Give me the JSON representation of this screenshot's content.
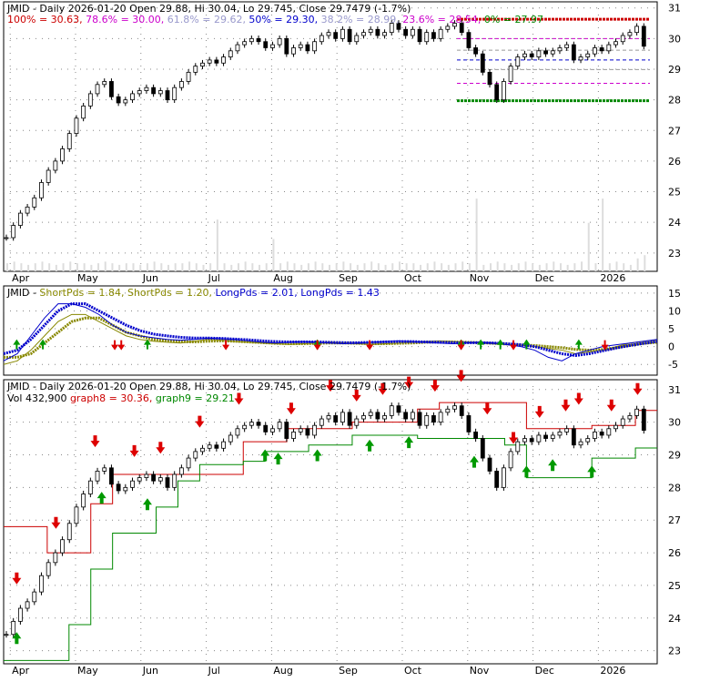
{
  "chart_data": [
    {
      "type": "line",
      "panel": "price",
      "title_parts": [
        {
          "text": "JMID - Daily 2026-01-20 Open 29.88, Hi 30.04, Lo 29.745, Close 29.7479 (-1.7%)",
          "color": "#000000"
        }
      ],
      "fib_parts": [
        {
          "text": "100% = 30.63,",
          "color": "#cc0000"
        },
        {
          "text": "78.6% = 30.00,",
          "color": "#cc00cc"
        },
        {
          "text": "61.8% = 29.62,",
          "color": "#9999cc"
        },
        {
          "text": "50% = 29.30,",
          "color": "#0000cc"
        },
        {
          "text": "38.2% = 28.99,",
          "color": "#9999cc"
        },
        {
          "text": "23.6% = 28.54,",
          "color": "#cc00cc"
        },
        {
          "text": "0% = 27.97",
          "color": "#008800"
        }
      ],
      "x_ticks": [
        "Apr",
        "May",
        "Jun",
        "Jul",
        "Aug",
        "Sep",
        "Oct",
        "Nov",
        "Dec",
        "2026"
      ],
      "y_ticks": [
        23,
        24,
        25,
        26,
        27,
        28,
        29,
        30,
        31
      ],
      "ylim": [
        22.4,
        31.2
      ],
      "fib_levels": [
        {
          "label": "100%",
          "value": 30.63,
          "color": "#cc0000"
        },
        {
          "label": "78.6%",
          "value": 30.0,
          "color": "#cc00cc"
        },
        {
          "label": "61.8%",
          "value": 29.62,
          "color": "#999999"
        },
        {
          "label": "50%",
          "value": 29.3,
          "color": "#0000cc"
        },
        {
          "label": "38.2%",
          "value": 28.99,
          "color": "#999999"
        },
        {
          "label": "23.6%",
          "value": 28.54,
          "color": "#cc00cc"
        },
        {
          "label": "0%",
          "value": 27.97,
          "color": "#008800"
        }
      ],
      "close": [
        23.5,
        23.9,
        24.3,
        24.5,
        24.8,
        25.3,
        25.7,
        26.0,
        26.4,
        26.9,
        27.4,
        27.8,
        28.2,
        28.5,
        28.6,
        28.1,
        27.9,
        28.0,
        28.2,
        28.3,
        28.4,
        28.2,
        28.3,
        28.0,
        28.4,
        28.6,
        28.9,
        29.1,
        29.2,
        29.3,
        29.2,
        29.4,
        29.6,
        29.8,
        29.9,
        30.0,
        29.9,
        29.7,
        29.8,
        30.0,
        29.5,
        29.7,
        29.8,
        29.6,
        29.9,
        30.1,
        30.2,
        30.0,
        30.3,
        29.9,
        30.1,
        30.2,
        30.3,
        30.1,
        30.2,
        30.5,
        30.3,
        30.1,
        30.3,
        29.9,
        30.2,
        30.0,
        30.3,
        30.4,
        30.5,
        30.2,
        29.7,
        29.5,
        28.9,
        28.5,
        28.0,
        28.6,
        29.1,
        29.4,
        29.5,
        29.4,
        29.6,
        29.5,
        29.6,
        29.7,
        29.8,
        29.3,
        29.4,
        29.5,
        29.7,
        29.6,
        29.8,
        29.9,
        30.1,
        30.2,
        30.4,
        29.75
      ],
      "volume_frac": [
        0.05,
        0.06,
        0.05,
        0.04,
        0.05,
        0.06,
        0.05,
        0.04,
        0.05,
        0.06,
        0.05,
        0.05,
        0.04,
        0.05,
        0.06,
        0.05,
        0.04,
        0.05,
        0.05,
        0.04,
        0.05,
        0.06,
        0.05,
        0.04,
        0.05,
        0.05,
        0.06,
        0.05,
        0.04,
        0.05,
        0.32,
        0.05,
        0.04,
        0.05,
        0.06,
        0.05,
        0.04,
        0.05,
        0.2,
        0.05,
        0.06,
        0.05,
        0.04,
        0.05,
        0.06,
        0.05,
        0.04,
        0.05,
        0.06,
        0.05,
        0.04,
        0.05,
        0.06,
        0.05,
        0.04,
        0.05,
        0.06,
        0.05,
        0.05,
        0.04,
        0.05,
        0.06,
        0.05,
        0.04,
        0.05,
        0.06,
        0.05,
        0.45,
        0.04,
        0.05,
        0.06,
        0.05,
        0.04,
        0.05,
        0.06,
        0.05,
        0.04,
        0.05,
        0.06,
        0.05,
        0.04,
        0.05,
        0.06,
        0.3,
        0.05,
        0.45,
        0.05,
        0.06,
        0.05,
        0.04,
        0.08,
        0.1
      ]
    },
    {
      "type": "line",
      "panel": "indicator",
      "title_parts": [
        {
          "text": "JMID -",
          "color": "#000000"
        },
        {
          "text": "ShortPds = 1.84,",
          "color": "#888800"
        },
        {
          "text": "ShortPds = 1.20,",
          "color": "#888800"
        },
        {
          "text": "LongPds = 2.01,",
          "color": "#0000cc"
        },
        {
          "text": "LongPds = 1.43",
          "color": "#0000cc"
        }
      ],
      "y_ticks": [
        -5,
        0,
        5,
        10,
        15
      ],
      "ylim": [
        -8,
        17
      ],
      "series": [
        {
          "name": "ShortPds",
          "color": "#888800",
          "values": [
            -5,
            -4,
            -1,
            3,
            7,
            9,
            9,
            7,
            5,
            3,
            2,
            1.5,
            1.2,
            1,
            1.5,
            2,
            1.8,
            1.4,
            1.2,
            1,
            0.8,
            0.6,
            0.8,
            1,
            1.2,
            1,
            0.8,
            0.6,
            0.8,
            1,
            1.2,
            1.4,
            1.6,
            1.4,
            1.2,
            1,
            0.8,
            0.6,
            0.4,
            0,
            -0.5,
            -1,
            -2,
            -1.5,
            -1,
            0,
            1,
            1.5,
            1.84
          ]
        },
        {
          "name": "ShortPds",
          "color": "#888800",
          "values": [
            -3,
            -3,
            -2,
            1,
            4,
            7,
            8,
            8,
            6,
            4,
            3,
            2,
            1.6,
            1.4,
            1.3,
            1.5,
            1.6,
            1.5,
            1.3,
            1.1,
            0.9,
            0.8,
            0.8,
            0.9,
            1.0,
            1.0,
            0.9,
            0.8,
            0.8,
            0.9,
            1.0,
            1.2,
            1.3,
            1.3,
            1.2,
            1.1,
            0.9,
            0.7,
            0.5,
            0.3,
            0,
            -0.3,
            -0.8,
            -1,
            -0.8,
            -0.3,
            0.4,
            0.9,
            1.2
          ]
        },
        {
          "name": "LongPds",
          "color": "#0000cc",
          "values": [
            -4,
            -2,
            3,
            8,
            12,
            12,
            11,
            9,
            6,
            4,
            3,
            2.5,
            2,
            1.8,
            2,
            2.4,
            2.2,
            2,
            1.6,
            1.2,
            1,
            1.2,
            1.4,
            1.2,
            1,
            0.8,
            1,
            1.2,
            1.4,
            1.6,
            1.4,
            1.2,
            1,
            0.8,
            1,
            1.2,
            1,
            0.5,
            0,
            -1,
            -3,
            -4,
            -2,
            -1,
            0,
            0.5,
            1,
            1.5,
            2.01
          ]
        },
        {
          "name": "LongPds",
          "color": "#0000cc",
          "values": [
            -2,
            -1,
            2,
            6,
            10,
            12,
            12,
            10,
            8,
            6,
            4.5,
            3.5,
            3,
            2.6,
            2.4,
            2.4,
            2.3,
            2.1,
            1.9,
            1.6,
            1.4,
            1.3,
            1.3,
            1.3,
            1.2,
            1.1,
            1.1,
            1.2,
            1.3,
            1.4,
            1.4,
            1.3,
            1.2,
            1.1,
            1.1,
            1.1,
            1.0,
            0.8,
            0.5,
            0,
            -1,
            -2,
            -2.5,
            -2,
            -1.2,
            -0.4,
            0.3,
            0.9,
            1.43
          ]
        }
      ],
      "up_arrows": [
        0.02,
        0.06,
        0.22,
        0.48,
        0.7,
        0.73,
        0.76,
        0.8,
        0.88
      ],
      "down_arrows": [
        0.17,
        0.18,
        0.34,
        0.48,
        0.56,
        0.7,
        0.78,
        0.92
      ]
    },
    {
      "type": "line",
      "panel": "price-bands",
      "title_parts": [
        {
          "text": "JMID - Daily 2026-01-20 Open 29.88, Hi 30.04, Lo 29.745, Close 29.7479 (-1.7%)",
          "color": "#000000"
        }
      ],
      "legend_parts": [
        {
          "text": "Vol 432,900",
          "color": "#000000"
        },
        {
          "text": "graph8 = 30.36,",
          "color": "#cc0000"
        },
        {
          "text": "graph9 = 29.21",
          "color": "#008800"
        }
      ],
      "y_ticks": [
        23,
        24,
        25,
        26,
        27,
        28,
        29,
        30,
        31
      ],
      "ylim": [
        22.6,
        31.3
      ],
      "series": [
        {
          "name": "graph8",
          "color": "#cc0000",
          "values": [
            26.8,
            26.8,
            26.0,
            26.0,
            27.5,
            28.4,
            28.4,
            28.4,
            28.4,
            28.4,
            28.4,
            29.4,
            29.4,
            29.8,
            29.8,
            29.8,
            30.0,
            30.0,
            30.0,
            30.4,
            30.6,
            30.6,
            30.6,
            30.6,
            29.8,
            29.8,
            29.8,
            29.9,
            29.9,
            30.36
          ]
        },
        {
          "name": "graph9",
          "color": "#008800",
          "values": [
            22.7,
            22.7,
            22.7,
            23.8,
            25.5,
            26.6,
            26.6,
            27.4,
            28.2,
            28.7,
            28.7,
            28.8,
            29.1,
            29.1,
            29.3,
            29.3,
            29.6,
            29.6,
            29.6,
            29.5,
            29.5,
            29.5,
            29.5,
            29.3,
            28.3,
            28.3,
            28.3,
            28.9,
            28.9,
            29.21
          ]
        }
      ],
      "up_arrows": [
        0.02,
        0.15,
        0.22,
        0.4,
        0.42,
        0.48,
        0.56,
        0.62,
        0.72,
        0.8,
        0.84,
        0.9
      ],
      "down_arrows": [
        0.02,
        0.08,
        0.14,
        0.2,
        0.24,
        0.3,
        0.36,
        0.44,
        0.5,
        0.54,
        0.58,
        0.62,
        0.66,
        0.7,
        0.74,
        0.78,
        0.82,
        0.86,
        0.88,
        0.93,
        0.97
      ]
    }
  ]
}
